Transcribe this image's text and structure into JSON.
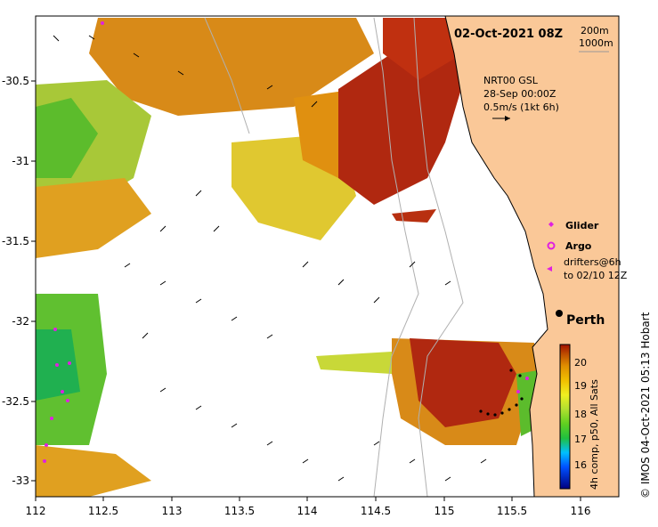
{
  "title": "02-Oct-2021 08Z",
  "scale": {
    "contour1": "200m",
    "contour2": "1000m"
  },
  "current_info": {
    "line1": "NRT00 GSL",
    "line2": "28-Sep 00:00Z",
    "line3": "0.5m/s (1kt 6h)"
  },
  "legend": {
    "glider": "Glider",
    "argo": "Argo",
    "drifters1": "drifters@6h",
    "drifters2": "to 02/10 12Z"
  },
  "city": "Perth",
  "colorbar": {
    "label": "4h comp, p50, All Sats",
    "ticks": [
      "20",
      "19",
      "18",
      "17",
      "16"
    ],
    "colors": [
      "#000080",
      "#0050ff",
      "#00c0ff",
      "#20c040",
      "#60d020",
      "#b0e030",
      "#f0f020",
      "#f0c000",
      "#e09000",
      "#c05000",
      "#a01000"
    ]
  },
  "credit": "© IMOS 04-Oct-2021 05:13 Hobart",
  "axes": {
    "x_ticks": [
      "112",
      "112.5",
      "113",
      "113.5",
      "114",
      "114.5",
      "115",
      "115.5",
      "116"
    ],
    "y_ticks": [
      "-30.5",
      "-31",
      "-31.5",
      "-32",
      "-32.5",
      "-33"
    ]
  },
  "colors": {
    "land": "#fac898",
    "warm": "#c03010",
    "mid": "#e0a020",
    "cool": "#60c030"
  }
}
